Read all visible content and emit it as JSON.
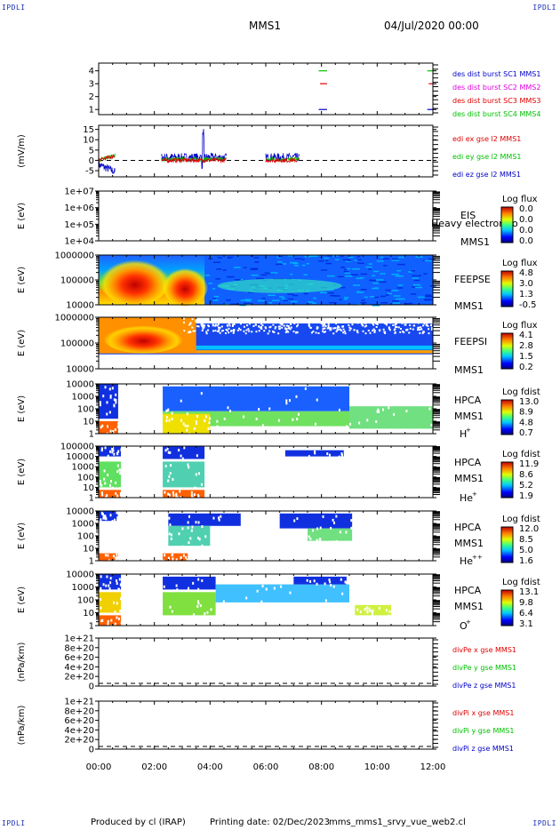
{
  "corners": {
    "tl": "IPDLI",
    "tr": "IPDLI",
    "bl": "IPDLI",
    "br": "IPDLI"
  },
  "header": {
    "mission": "MMS1",
    "date": "04/Jul/2020 00:00"
  },
  "footer": {
    "produced": "Produced by cl (IRAP)",
    "printing": "Printing date: 02/Dec/2023",
    "file": "mms_mms1_srvy_vue_web2.cl"
  },
  "x_axis": {
    "ticks": [
      "00:00",
      "02:00",
      "04:00",
      "06:00",
      "08:00",
      "10:00",
      "12:00"
    ]
  },
  "colors": {
    "red": "#e00000",
    "green": "#00c000",
    "blue": "#0000c8",
    "magenta": "#e000e0"
  },
  "chart_data": [
    {
      "id": "burst",
      "type": "line",
      "yticks": [
        "4",
        "3",
        "2",
        "1"
      ],
      "ylim": [
        0.6,
        4.6
      ],
      "legend": [
        {
          "text": "des dist burst SC1 MMS1",
          "color": "blue"
        },
        {
          "text": "des dist burst SC2 MMS2",
          "color": "magenta"
        },
        {
          "text": "des dist burst SC3 MMS3",
          "color": "red"
        },
        {
          "text": "des dist burst SC4 MMS4",
          "color": "green"
        }
      ],
      "series": [
        {
          "color": "green",
          "y": 4,
          "x": [
            [
              7.9,
              8.2
            ],
            [
              11.8,
              12.0
            ]
          ]
        },
        {
          "color": "red",
          "y": 3,
          "x": [
            [
              7.95,
              8.2
            ],
            [
              11.85,
              12.0
            ]
          ]
        },
        {
          "color": "blue",
          "y": 1,
          "x": [
            [
              7.9,
              8.2
            ],
            [
              11.8,
              12.0
            ]
          ]
        }
      ]
    },
    {
      "id": "edi",
      "type": "line",
      "ylabel": "(mV/m)",
      "yticks": [
        "15",
        "10",
        "5",
        "0",
        "-5"
      ],
      "ylim": [
        -8,
        17
      ],
      "legend": [
        {
          "text": "edi ex gse l2 MMS1",
          "color": "red"
        },
        {
          "text": "edi ey gse l2 MMS1",
          "color": "green"
        },
        {
          "text": "edi ez gse l2 MMS1",
          "color": "blue"
        }
      ]
    },
    {
      "id": "eis",
      "type": "heatmap",
      "ylabel": "E (eV)",
      "yticks": [
        "1e+07",
        "1e+06",
        "1e+05",
        "1e+04"
      ],
      "label": [
        "EIS",
        "MMS1"
      ],
      "overlay": "Heavy electron to",
      "cbar": {
        "title": "Log flux",
        "ticks": [
          "0.0",
          "0.0",
          "0.0",
          "0.0"
        ]
      }
    },
    {
      "id": "feepse",
      "type": "heatmap",
      "ylabel": "E (eV)",
      "yticks": [
        "1000000",
        "100000",
        "10000"
      ],
      "label": [
        "FEEPSE",
        "MMS1"
      ],
      "cbar": {
        "title": "Log flux",
        "ticks": [
          "4.8",
          "3.0",
          "1.3",
          "-0.5"
        ]
      }
    },
    {
      "id": "feepsi",
      "type": "heatmap",
      "ylabel": "E (eV)",
      "yticks": [
        "1000000",
        "100000",
        "10000"
      ],
      "label": [
        "FEEPSI",
        "MMS1"
      ],
      "cbar": {
        "title": "Log flux",
        "ticks": [
          "4.1",
          "2.8",
          "1.5",
          "0.2"
        ]
      }
    },
    {
      "id": "hpca_h",
      "type": "heatmap",
      "ylabel": "E (eV)",
      "yticks": [
        "10000",
        "1000",
        "100",
        "10",
        "1"
      ],
      "label": [
        "HPCA",
        "MMS1"
      ],
      "species": "H",
      "sup": "+",
      "cbar": {
        "title": "Log fdist",
        "ticks": [
          "13.0",
          "8.9",
          "4.8",
          "0.7"
        ]
      }
    },
    {
      "id": "hpca_he",
      "type": "heatmap",
      "ylabel": "E (eV)",
      "yticks": [
        "100000",
        "10000",
        "1000",
        "100",
        "10",
        "1"
      ],
      "label": [
        "HPCA",
        "MMS1"
      ],
      "species": "He",
      "sup": "+",
      "cbar": {
        "title": "Log fdist",
        "ticks": [
          "11.9",
          "8.6",
          "5.2",
          "1.9"
        ]
      }
    },
    {
      "id": "hpca_hepp",
      "type": "heatmap",
      "ylabel": "E (eV)",
      "yticks": [
        "10000",
        "1000",
        "100",
        "10",
        "1"
      ],
      "label": [
        "HPCA",
        "MMS1"
      ],
      "species": "He",
      "sup": "++",
      "cbar": {
        "title": "Log fdist",
        "ticks": [
          "12.0",
          "8.5",
          "5.0",
          "1.6"
        ]
      }
    },
    {
      "id": "hpca_o",
      "type": "heatmap",
      "ylabel": "E (eV)",
      "yticks": [
        "10000",
        "1000",
        "100",
        "10",
        "1"
      ],
      "label": [
        "HPCA",
        "MMS1"
      ],
      "species": "O",
      "sup": "+",
      "cbar": {
        "title": "Log fdist",
        "ticks": [
          "13.1",
          "9.8",
          "6.4",
          "3.1"
        ]
      }
    },
    {
      "id": "divpe",
      "type": "line",
      "ylabel": "(nPa/km)",
      "yticks": [
        "1e+21",
        "8e+20",
        "6e+20",
        "4e+20",
        "2e+20",
        "0"
      ],
      "legend": [
        {
          "text": "divPe x gse MMS1",
          "color": "red"
        },
        {
          "text": "divPe y gse MMS1",
          "color": "green"
        },
        {
          "text": "divPe z gse MMS1",
          "color": "blue"
        }
      ]
    },
    {
      "id": "divpi",
      "type": "line",
      "ylabel": "(nPa/km)",
      "yticks": [
        "1e+21",
        "8e+20",
        "6e+20",
        "4e+20",
        "2e+20",
        "0"
      ],
      "legend": [
        {
          "text": "divPi x gse MMS1",
          "color": "red"
        },
        {
          "text": "divPi y gse MMS1",
          "color": "green"
        },
        {
          "text": "divPi z gse MMS1",
          "color": "blue"
        }
      ]
    }
  ]
}
